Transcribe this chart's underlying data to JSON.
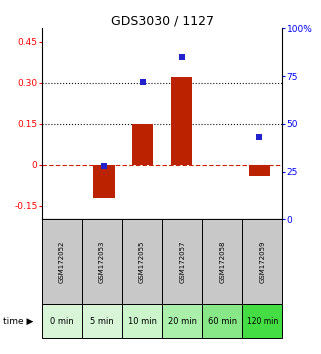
{
  "title": "GDS3030 / 1127",
  "samples": [
    "GSM172052",
    "GSM172053",
    "GSM172055",
    "GSM172057",
    "GSM172058",
    "GSM172059"
  ],
  "time_labels": [
    "0 min",
    "5 min",
    "10 min",
    "20 min",
    "60 min",
    "120 min"
  ],
  "log2_ratio": [
    0.0,
    -0.12,
    0.15,
    0.32,
    0.0,
    -0.04
  ],
  "percentile_rank": [
    null,
    28,
    72,
    85,
    null,
    43
  ],
  "ylim_left": [
    -0.2,
    0.5
  ],
  "ylim_right": [
    0,
    100
  ],
  "yticks_left": [
    -0.15,
    0.0,
    0.15,
    0.3,
    0.45
  ],
  "yticks_right": [
    0,
    25,
    50,
    75,
    100
  ],
  "hlines": [
    0.15,
    0.3
  ],
  "bar_color": "#bb2200",
  "dot_color": "#2222cc",
  "grid_color": "#111111",
  "zero_line_color": "#cc2200",
  "label_bg_gray": "#c8c8c8",
  "green_colors": [
    "#d8f5d8",
    "#d8f5d8",
    "#ccf5cc",
    "#aaf0aa",
    "#88e888",
    "#44dd44"
  ],
  "bar_width": 0.55,
  "x_positions": [
    1,
    2,
    3,
    4,
    5,
    6
  ],
  "n_cols": 6
}
